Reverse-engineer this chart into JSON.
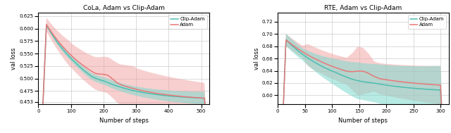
{
  "cola": {
    "title": "CoLa, Adam vs Clip-Adam",
    "xlabel": "Number of steps",
    "ylabel": "val loss",
    "xlim": [
      0,
      525
    ],
    "ylim": [
      0.448,
      0.632
    ],
    "yticks": [
      0.453,
      0.475,
      0.5,
      0.525,
      0.55,
      0.575,
      0.6,
      0.625
    ],
    "xticks": [
      0,
      100,
      200,
      300,
      400,
      500
    ],
    "clip_adam_color": "#4dbdb0",
    "adam_color": "#e87878",
    "clip_adam_fill_color": "#7dd9cc",
    "adam_fill_color": "#f0a0a0",
    "clip_adam_fill_alpha": 0.55,
    "adam_fill_alpha": 0.5
  },
  "rte": {
    "title": "RTE, Adam vs Clip-Adam",
    "xlabel": "Number of steps",
    "ylabel": "val loss",
    "xlim": [
      0,
      315
    ],
    "ylim": [
      0.585,
      0.735
    ],
    "yticks": [
      0.6,
      0.62,
      0.64,
      0.66,
      0.68,
      0.7,
      0.72
    ],
    "xticks": [
      0,
      50,
      100,
      150,
      200,
      250,
      300
    ],
    "clip_adam_color": "#4dbdb0",
    "adam_color": "#e87878",
    "clip_adam_fill_color": "#7dd9cc",
    "adam_fill_color": "#f0a0a0",
    "clip_adam_fill_alpha": 0.55,
    "adam_fill_alpha": 0.5
  },
  "bg_color": "#ffffff",
  "grid_color": "#cccccc",
  "legend_clip_adam": "Clip-Adam",
  "legend_adam": "Adam"
}
